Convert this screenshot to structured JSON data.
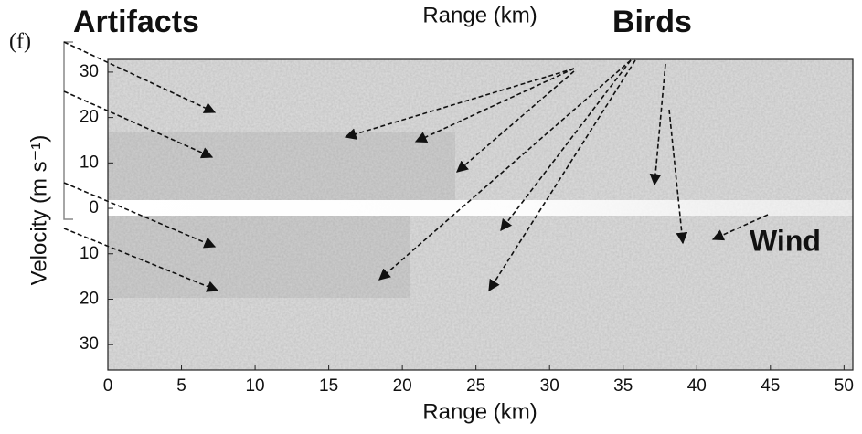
{
  "chart_data": {
    "type": "image",
    "title": "Range (km)",
    "panel_label": "(f)",
    "x_label": "Range (km)",
    "y_label": "Velocity (m s⁻¹)",
    "xlim": [
      0,
      50.6
    ],
    "ylim": [
      35.6,
      -32.8
    ],
    "xticks": [
      0,
      5,
      10,
      15,
      20,
      25,
      30,
      35,
      40,
      45,
      50
    ],
    "yticks": [
      {
        "value": -30,
        "label": "30"
      },
      {
        "value": -20,
        "label": "20"
      },
      {
        "value": -10,
        "label": "10"
      },
      0,
      10,
      20,
      30
    ],
    "annotations": [
      "Artifacts",
      "Birds",
      "Wind"
    ]
  }
}
